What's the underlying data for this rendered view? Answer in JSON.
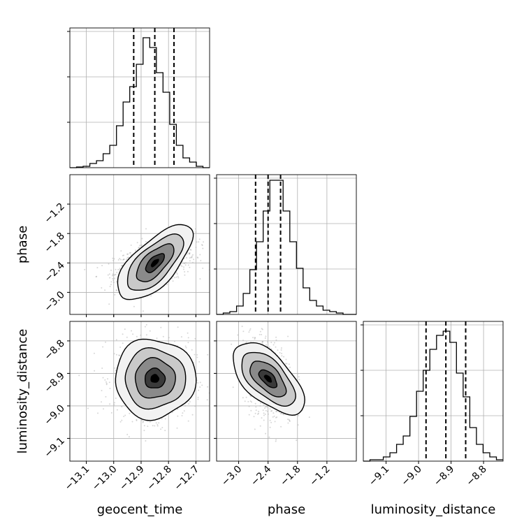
{
  "chart_data": {
    "type": "corner",
    "parameters": [
      "geocent_time",
      "phase",
      "luminosity_distance"
    ],
    "axis_labels": {
      "geocent_time": "geocent_time",
      "phase": "phase",
      "luminosity_distance": "luminosity_distance"
    },
    "ranges": {
      "geocent_time": [
        -13.16,
        -12.65
      ],
      "phase": [
        -3.45,
        -0.6
      ],
      "luminosity_distance": [
        -9.17,
        -8.74
      ]
    },
    "ticks": {
      "geocent_time": [
        -13.1,
        -13.0,
        -12.9,
        -12.8,
        -12.7
      ],
      "phase": [
        -3.0,
        -2.4,
        -1.8,
        -1.2
      ],
      "luminosity_distance": [
        -9.1,
        -9.0,
        -8.9,
        -8.8
      ]
    },
    "tick_labels": {
      "geocent_time": [
        "−13.1",
        "−13.0",
        "−12.9",
        "−12.8",
        "−12.7"
      ],
      "phase": [
        "−3.0",
        "−2.4",
        "−1.8",
        "−1.2"
      ],
      "luminosity_distance": [
        "−9.1",
        "−9.0",
        "−8.9",
        "−8.8"
      ]
    },
    "quantiles": {
      "geocent_time": [
        -12.927,
        -12.85,
        -12.78
      ],
      "phase": [
        -2.655,
        -2.4,
        -2.145
      ],
      "luminosity_distance": [
        -8.977,
        -8.916,
        -8.855
      ]
    },
    "histograms": {
      "geocent_time": [
        0.0,
        0.005,
        0.01,
        0.03,
        0.05,
        0.1,
        0.16,
        0.3,
        0.47,
        0.58,
        0.74,
        0.93,
        0.86,
        0.68,
        0.54,
        0.31,
        0.16,
        0.07,
        0.04,
        0.01,
        0.0
      ],
      "phase": [
        0.0,
        0.01,
        0.02,
        0.06,
        0.15,
        0.32,
        0.52,
        0.74,
        0.96,
        0.96,
        0.74,
        0.52,
        0.33,
        0.19,
        0.1,
        0.06,
        0.03,
        0.02,
        0.01,
        0.0,
        0.0
      ],
      "luminosity_distance": [
        0.0,
        0.01,
        0.01,
        0.03,
        0.06,
        0.12,
        0.18,
        0.32,
        0.5,
        0.65,
        0.8,
        0.9,
        0.93,
        0.85,
        0.63,
        0.46,
        0.24,
        0.12,
        0.06,
        0.03,
        0.01
      ]
    },
    "correlations": {
      "phase|geocent_time": 0.45,
      "luminosity_distance|geocent_time": 0.0,
      "luminosity_distance|phase": -0.3
    },
    "grid": true,
    "colors": {
      "line": "#000000",
      "points": "#8c8c8c",
      "grid": "#b0b0b0"
    }
  }
}
